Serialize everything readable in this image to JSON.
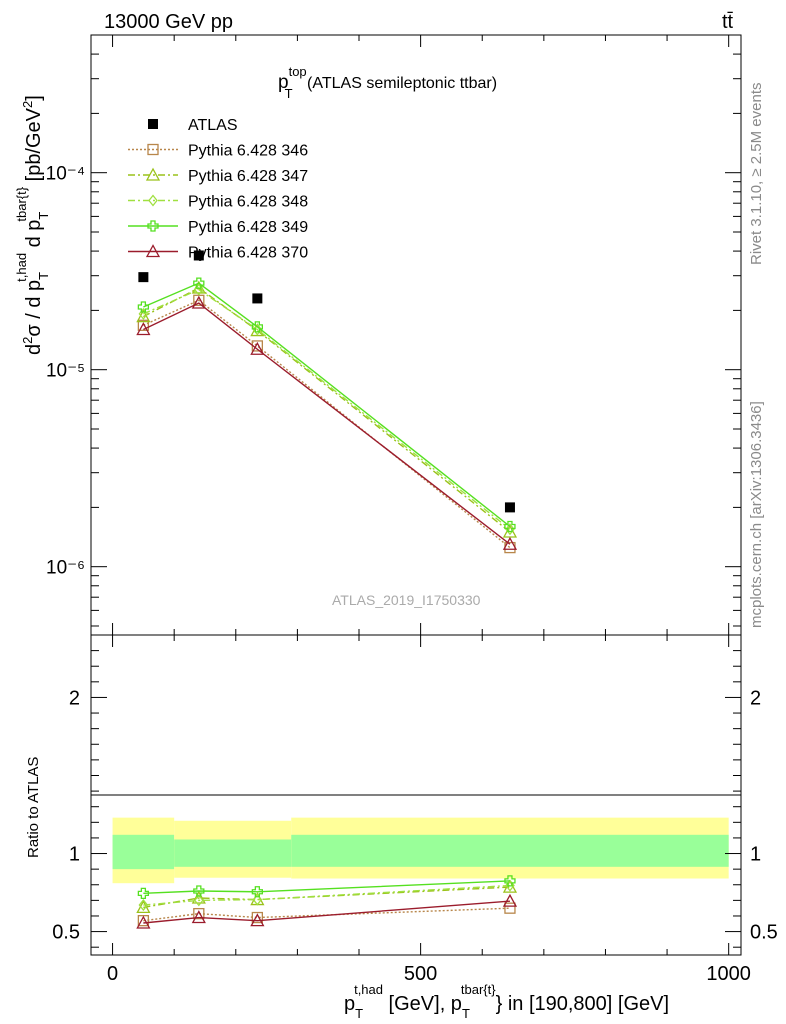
{
  "header": {
    "left": "13000 GeV pp",
    "right": "tt̄"
  },
  "side_text": {
    "top": "Rivet 3.1.10, ≥ 2.5M events",
    "bottom": "mcplots.cern.ch [arXiv:1306.3436]"
  },
  "watermark": "ATLAS_2019_I1750330",
  "plot_title": {
    "main": "p",
    "sup": "top",
    "sub": "T",
    "rest": " (ATLAS semileptonic ttbar)"
  },
  "ylabel_top": "d²σ / d p_T^{t,had} d p_T^{tbar{t}} [pb/GeV²]",
  "ylabel_bottom": "Ratio to ATLAS",
  "xlabel": "p_T^{t,had} [GeV], p_T^{tbar{t}} in [190,800] [GeV]",
  "chart_data": [
    {
      "type": "scatter",
      "scale": "log",
      "xlim": [
        -35,
        1020
      ],
      "ylim": [
        4.5e-07,
        0.0005
      ],
      "x_ticks": [
        0,
        500,
        1000
      ],
      "y_tick_labels": [
        "10⁻⁶",
        "10⁻⁵",
        "10⁻⁴"
      ],
      "data": {
        "name": "ATLAS",
        "x": [
          50,
          140,
          235,
          645
        ],
        "y": [
          2.95e-05,
          3.8e-05,
          2.3e-05,
          2e-06
        ]
      },
      "series": [
        {
          "name": "Pythia 6.428 346",
          "color": "#b8864a",
          "marker": "square-open",
          "dash": "dotted",
          "y": [
            1.68e-05,
            2.25e-05,
            1.32e-05,
            1.25e-06
          ]
        },
        {
          "name": "Pythia 6.428 347",
          "color": "#9ac21a",
          "marker": "triangle-open",
          "dash": "dashdot",
          "y": [
            1.86e-05,
            2.6e-05,
            1.58e-05,
            1.5e-06
          ]
        },
        {
          "name": "Pythia 6.428 348",
          "color": "#a0e040",
          "marker": "diamond-open",
          "dash": "dashdot",
          "y": [
            1.92e-05,
            2.55e-05,
            1.6e-05,
            1.55e-06
          ]
        },
        {
          "name": "Pythia 6.428 349",
          "color": "#55e020",
          "marker": "cross-open",
          "dash": "solid",
          "y": [
            2.08e-05,
            2.75e-05,
            1.65e-05,
            1.6e-06
          ]
        },
        {
          "name": "Pythia 6.428 370",
          "color": "#9b1c2c",
          "marker": "triangle-open",
          "dash": "solid",
          "y": [
            1.6e-05,
            2.18e-05,
            1.27e-05,
            1.3e-06
          ]
        }
      ]
    },
    {
      "type": "line",
      "ylabel": "Ratio to ATLAS",
      "xlim": [
        -35,
        1020
      ],
      "ylim": [
        0.35,
        2.4
      ],
      "y_ticks": [
        0.5,
        1,
        2
      ],
      "y_tick_labels": [
        "0.5",
        "1",
        "2"
      ],
      "bands": [
        {
          "x0": 0,
          "x1": 100,
          "yellow": [
            0.81,
            1.23
          ],
          "green": [
            0.9,
            1.12
          ]
        },
        {
          "x0": 100,
          "x1": 290,
          "yellow": [
            0.845,
            1.21
          ],
          "green": [
            0.915,
            1.09
          ]
        },
        {
          "x0": 290,
          "x1": 1000,
          "yellow": [
            0.84,
            1.23
          ],
          "green": [
            0.915,
            1.12
          ]
        }
      ],
      "x": [
        50,
        140,
        235,
        645
      ],
      "series": [
        {
          "name": "Pythia 6.428 346",
          "y": [
            0.57,
            0.615,
            0.59,
            0.65
          ]
        },
        {
          "name": "Pythia 6.428 347",
          "y": [
            0.655,
            0.715,
            0.705,
            0.785
          ]
        },
        {
          "name": "Pythia 6.428 348",
          "y": [
            0.67,
            0.7,
            0.705,
            0.795
          ]
        },
        {
          "name": "Pythia 6.428 349",
          "y": [
            0.745,
            0.76,
            0.755,
            0.825
          ]
        },
        {
          "name": "Pythia 6.428 370",
          "y": [
            0.555,
            0.59,
            0.57,
            0.695
          ]
        }
      ]
    }
  ]
}
